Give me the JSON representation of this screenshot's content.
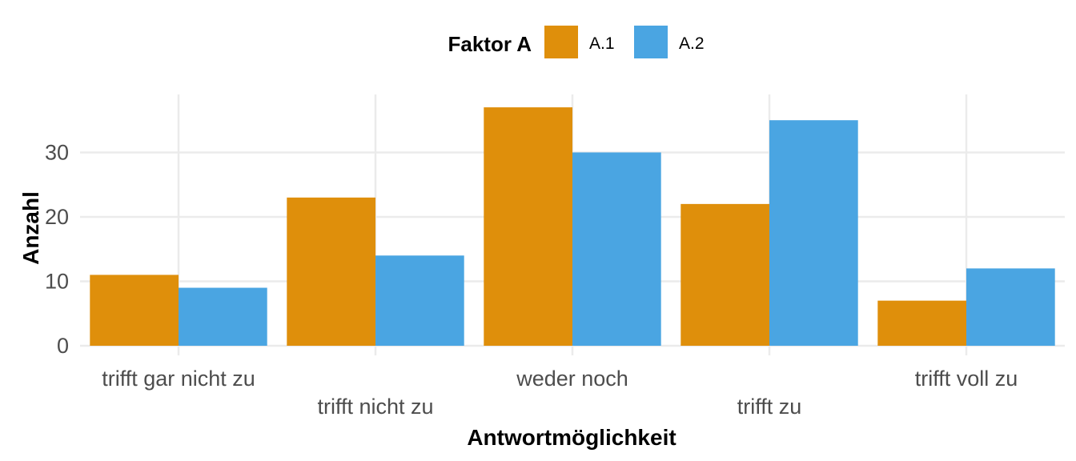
{
  "chart_data": {
    "type": "bar",
    "categories": [
      "trifft gar nicht zu",
      "trifft nicht zu",
      "weder noch",
      "trifft zu",
      "trifft voll zu"
    ],
    "series": [
      {
        "name": "A.1",
        "values": [
          11,
          23,
          37,
          22,
          7
        ],
        "color": "#DF8F0B"
      },
      {
        "name": "A.2",
        "values": [
          9,
          14,
          30,
          35,
          12
        ],
        "color": "#4AA5E2"
      }
    ],
    "title": "",
    "xlabel": "Antwortmöglichkeit",
    "ylabel": "Anzahl",
    "legend_title": "Faktor A",
    "legend_position": "top",
    "ylim": [
      0,
      39
    ],
    "yticks": [
      0,
      10,
      20,
      30
    ],
    "grid": true
  }
}
